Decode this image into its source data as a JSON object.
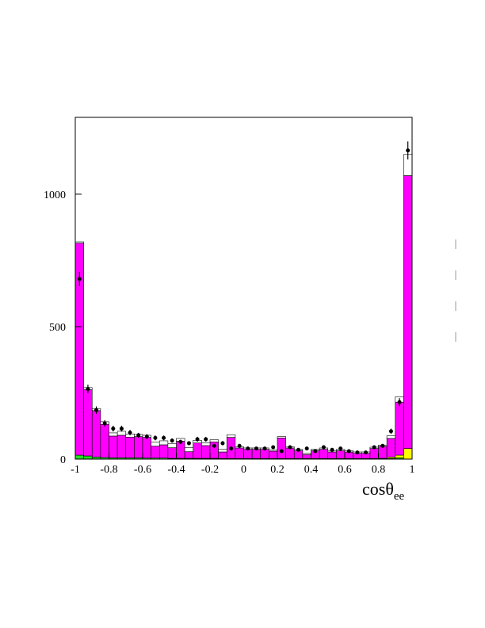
{
  "chart_data": {
    "type": "histogram",
    "x_label": "cosθ",
    "x_label_sub": "ee",
    "bins": [
      -1,
      -0.95,
      -0.9,
      -0.85,
      -0.8,
      -0.75,
      -0.7,
      -0.65,
      -0.6,
      -0.55,
      -0.5,
      -0.45,
      -0.4,
      -0.35,
      -0.3,
      -0.25,
      -0.2,
      -0.15,
      -0.1,
      -0.05,
      0,
      0.05,
      0.1,
      0.15,
      0.2,
      0.25,
      0.3,
      0.35,
      0.4,
      0.45,
      0.5,
      0.55,
      0.6,
      0.65,
      0.7,
      0.75,
      0.8,
      0.85,
      0.9,
      0.95,
      1
    ],
    "series": [
      {
        "color": "#22dd22",
        "values": [
          15,
          12,
          8,
          6,
          5,
          5,
          5,
          5,
          4,
          4,
          4,
          3,
          3,
          3,
          3,
          3,
          3,
          2,
          2,
          2,
          2,
          2,
          2,
          2,
          2,
          2,
          2,
          2,
          2,
          2,
          2,
          2,
          2,
          2,
          2,
          2,
          3,
          3,
          5,
          0
        ]
      },
      {
        "color": "#ffff00",
        "values": [
          0,
          0,
          0,
          0,
          0,
          0,
          0,
          0,
          0,
          0,
          0,
          0,
          0,
          0,
          0,
          0,
          0,
          0,
          0,
          0,
          0,
          0,
          0,
          0,
          0,
          0,
          0,
          0,
          0,
          0,
          0,
          0,
          0,
          0,
          0,
          0,
          0,
          5,
          10,
          40
        ]
      },
      {
        "color": "#ff00ff",
        "values": [
          800,
          250,
          175,
          125,
          82,
          85,
          78,
          80,
          78,
          45,
          50,
          40,
          65,
          25,
          58,
          48,
          62,
          25,
          80,
          40,
          35,
          35,
          35,
          28,
          78,
          40,
          30,
          15,
          30,
          35,
          25,
          30,
          25,
          20,
          20,
          38,
          45,
          70,
          200,
          1030
        ]
      },
      {
        "color": "#ffffff",
        "values": [
          5,
          8,
          8,
          10,
          12,
          15,
          12,
          8,
          8,
          15,
          15,
          15,
          10,
          15,
          10,
          10,
          8,
          10,
          10,
          5,
          5,
          5,
          5,
          5,
          5,
          5,
          5,
          5,
          5,
          5,
          5,
          5,
          5,
          5,
          5,
          5,
          5,
          10,
          20,
          80
        ]
      }
    ],
    "data_points": {
      "color": "#000000",
      "values": [
        680,
        265,
        185,
        135,
        115,
        115,
        100,
        90,
        85,
        80,
        80,
        70,
        65,
        60,
        75,
        75,
        50,
        60,
        40,
        50,
        40,
        40,
        40,
        45,
        30,
        45,
        35,
        40,
        30,
        45,
        35,
        40,
        30,
        25,
        25,
        45,
        50,
        105,
        215,
        1165
      ],
      "errors": [
        26,
        16,
        14,
        12,
        11,
        11,
        10,
        9,
        9,
        9,
        9,
        8,
        8,
        8,
        9,
        9,
        7,
        8,
        6,
        7,
        6,
        6,
        6,
        7,
        5,
        7,
        6,
        6,
        5,
        7,
        6,
        6,
        5,
        5,
        5,
        7,
        7,
        10,
        15,
        34
      ]
    },
    "xlim": [
      -1,
      1
    ],
    "xticks": [
      -1,
      -0.8,
      -0.6,
      -0.4,
      -0.2,
      0,
      0.2,
      0.4,
      0.6,
      0.8,
      1
    ],
    "ylim": [
      0,
      1290
    ],
    "yticks": [
      0,
      500,
      1000
    ]
  }
}
